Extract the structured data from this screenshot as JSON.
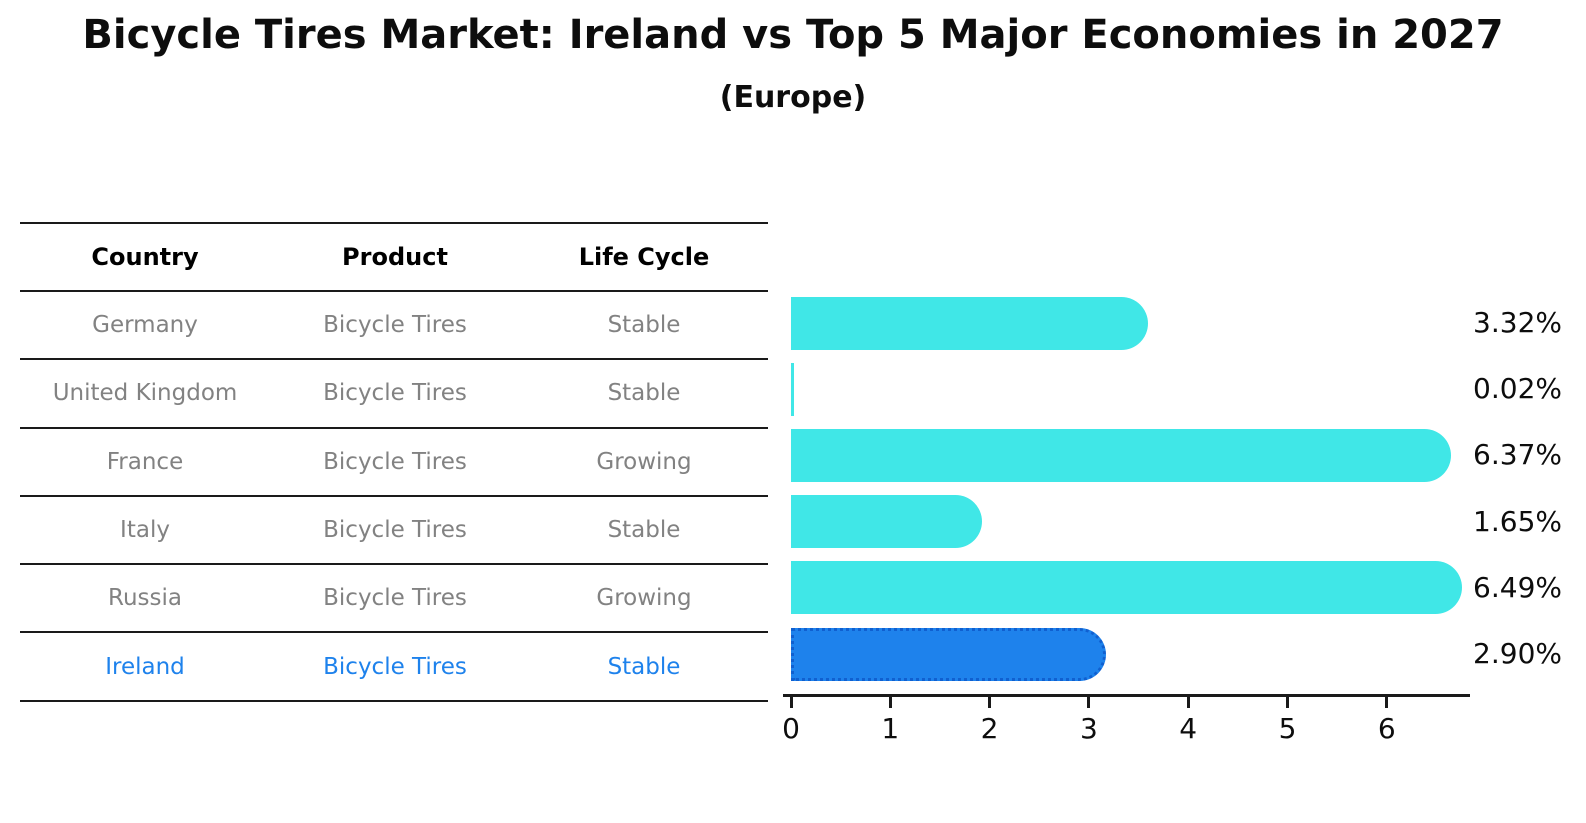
{
  "chart": {
    "title": "Bicycle Tires Market: Ireland vs Top 5 Major Economies in 2027",
    "subtitle": "(Europe)"
  },
  "table": {
    "headers": [
      "Country",
      "Product",
      "Life Cycle"
    ],
    "rows": [
      {
        "country": "Germany",
        "product": "Bicycle Tires",
        "life_cycle": "Stable"
      },
      {
        "country": "United Kingdom",
        "product": "Bicycle Tires",
        "life_cycle": "Stable"
      },
      {
        "country": "France",
        "product": "Bicycle Tires",
        "life_cycle": "Growing"
      },
      {
        "country": "Italy",
        "product": "Bicycle Tires",
        "life_cycle": "Stable"
      },
      {
        "country": "Russia",
        "product": "Bicycle Tires",
        "life_cycle": "Growing"
      },
      {
        "country": "Ireland",
        "product": "Bicycle Tires",
        "life_cycle": "Stable"
      }
    ]
  },
  "chart_data": {
    "type": "bar",
    "orientation": "horizontal",
    "title": "Bicycle Tires Market: Ireland vs Top 5 Major Economies in 2027",
    "subtitle": "(Europe)",
    "categories": [
      "Germany",
      "United Kingdom",
      "France",
      "Italy",
      "Russia",
      "Ireland"
    ],
    "values": [
      3.32,
      0.02,
      6.37,
      1.65,
      6.49,
      2.9
    ],
    "value_labels": [
      "3.32%",
      "0.02%",
      "6.37%",
      "1.65%",
      "6.49%",
      "2.90%"
    ],
    "x_ticks": [
      "0",
      "1",
      "2",
      "3",
      "4",
      "5",
      "6"
    ],
    "xlim": [
      0,
      6.9
    ],
    "grid": false,
    "legend": false,
    "bar_color": "#40e7e7",
    "highlight_index": 5,
    "highlight_color": "#1e82ec",
    "highlight_border_color": "#1060d0",
    "text_color": "#0d0d0d",
    "muted_text_color": "#828282"
  }
}
